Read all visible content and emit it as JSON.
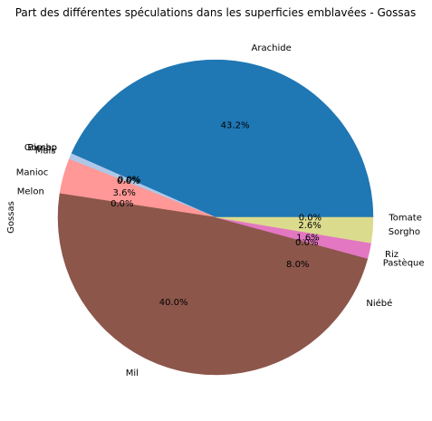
{
  "chart_data": {
    "type": "pie",
    "title": "Part des différentes spéculations dans les superficies emblavées - Gossas",
    "ylabel": "Gossas",
    "xlabel": "",
    "start_angle_deg": 0,
    "direction": "counterclockwise",
    "slices": [
      {
        "label": "Arachide",
        "value": 43.2,
        "pct_text": "43.2%",
        "color": "#1f77b4"
      },
      {
        "label": "Bissap",
        "value": 0.0,
        "pct_text": "0.0%",
        "color": "#ff7f0e"
      },
      {
        "label": "Gombo",
        "value": 0.0,
        "pct_text": "0.0%",
        "color": "#2ca02c"
      },
      {
        "label": "Mais",
        "value": 0.6,
        "pct_text": "0.6%",
        "color": "#aec7e8"
      },
      {
        "label": "Manioc",
        "value": 3.6,
        "pct_text": "3.6%",
        "color": "#ff9896"
      },
      {
        "label": "Melon",
        "value": 0.0,
        "pct_text": "0.0%",
        "color": "#9467bd"
      },
      {
        "label": "Mil",
        "value": 40.0,
        "pct_text": "40.0%",
        "color": "#8c564b"
      },
      {
        "label": "Niébé",
        "value": 8.0,
        "pct_text": "8.0%",
        "color": "#8c564b"
      },
      {
        "label": "Pastèque",
        "value": 0.0,
        "pct_text": "0.0%",
        "color": "#e377c2"
      },
      {
        "label": "Riz",
        "value": 1.6,
        "pct_text": "1.6%",
        "color": "#e377c2"
      },
      {
        "label": "Sorgho",
        "value": 2.6,
        "pct_text": "2.6%",
        "color": "#dbdb8d"
      },
      {
        "label": "Tomate",
        "value": 0.0,
        "pct_text": "0.0%",
        "color": "#dbdb8d"
      }
    ]
  }
}
